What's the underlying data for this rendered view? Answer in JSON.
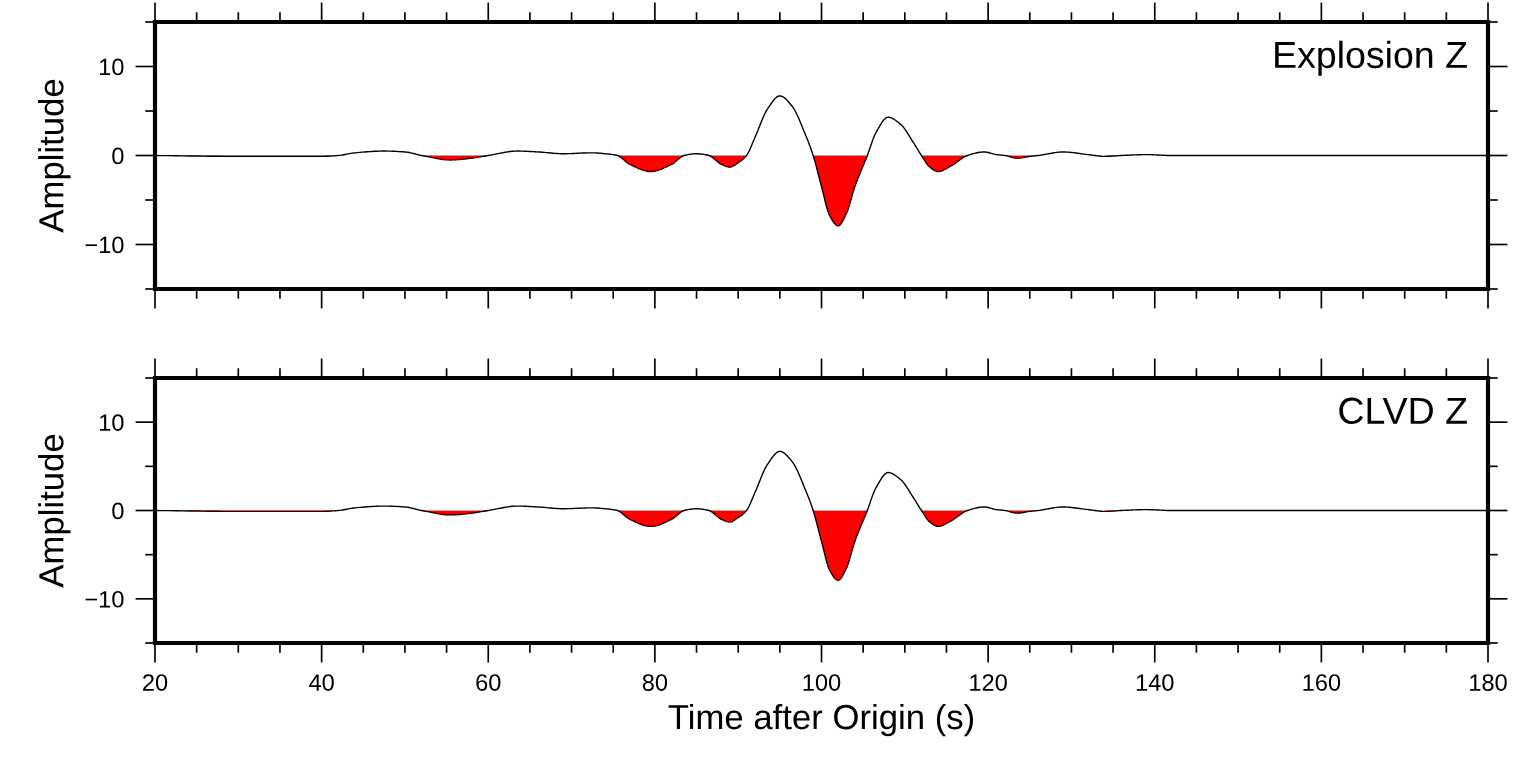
{
  "chart_data": [
    {
      "type": "line",
      "ylabel": "Amplitude",
      "annotations": [
        "Explosion Z"
      ],
      "tick_labels": "y",
      "grid": false,
      "legend": false,
      "x": [
        20,
        30,
        40,
        42,
        44,
        47.5,
        50,
        52,
        55.5,
        58,
        60,
        63.5,
        66,
        69,
        72.5,
        74,
        75.5,
        77,
        79.5,
        82,
        83.5,
        85,
        86.5,
        88,
        89,
        90,
        91,
        92,
        93.5,
        95,
        96.5,
        98,
        99,
        100,
        101,
        102,
        103,
        104,
        105.5,
        106.5,
        108,
        109.5,
        111,
        112,
        113,
        114,
        115.5,
        117.5,
        119.5,
        121,
        122,
        123.5,
        125,
        126,
        129,
        132,
        134,
        136,
        139,
        142,
        145,
        160,
        170,
        180
      ],
      "series": [
        {
          "type": "area",
          "color": "#ff0000",
          "values": [
            0,
            -0.1,
            -0.1,
            0,
            null,
            null,
            null,
            0,
            -0.5,
            -0.3,
            0,
            null,
            null,
            null,
            null,
            null,
            0,
            -1.0,
            -1.8,
            -1.0,
            0,
            null,
            0,
            -1.0,
            -1.3,
            -0.8,
            0,
            null,
            null,
            null,
            null,
            null,
            0,
            -3.5,
            -6.8,
            -7.9,
            -6.5,
            -3.5,
            0,
            null,
            null,
            null,
            null,
            0,
            -1.3,
            -1.8,
            -1.2,
            0,
            null,
            null,
            0,
            -0.3,
            -0.1,
            0,
            null,
            null,
            -0.1,
            0,
            null,
            null,
            null,
            null,
            null,
            null
          ]
        },
        {
          "color": "#000000",
          "values": [
            0,
            -0.1,
            -0.1,
            0,
            0.3,
            0.5,
            0.4,
            0,
            -0.5,
            -0.3,
            0,
            0.5,
            0.4,
            0.2,
            0.3,
            0.2,
            0,
            -1.0,
            -1.8,
            -1.0,
            0,
            0.2,
            0,
            -1.0,
            -1.3,
            -0.8,
            0,
            2.0,
            5.2,
            6.7,
            5.5,
            2.5,
            0,
            -3.5,
            -6.8,
            -7.9,
            -6.5,
            -3.5,
            0,
            2.5,
            4.3,
            3.5,
            1.5,
            0,
            -1.3,
            -1.8,
            -1.2,
            0,
            0.4,
            0.1,
            0,
            -0.3,
            -0.1,
            0,
            0.4,
            0.1,
            -0.1,
            0,
            0.1,
            0,
            0,
            0,
            0,
            0
          ]
        }
      ],
      "xlim": [
        20,
        180
      ],
      "ylim": [
        -15,
        15
      ],
      "xticks": [
        20,
        {
          "value": 25,
          "label": null
        },
        {
          "value": 30,
          "label": null
        },
        {
          "value": 35,
          "label": null
        },
        40,
        {
          "value": 45,
          "label": null
        },
        {
          "value": 50,
          "label": null
        },
        {
          "value": 55,
          "label": null
        },
        60,
        {
          "value": 65,
          "label": null
        },
        {
          "value": 70,
          "label": null
        },
        {
          "value": 75,
          "label": null
        },
        80,
        {
          "value": 85,
          "label": null
        },
        {
          "value": 90,
          "label": null
        },
        {
          "value": 95,
          "label": null
        },
        100,
        {
          "value": 105,
          "label": null
        },
        {
          "value": 110,
          "label": null
        },
        {
          "value": 115,
          "label": null
        },
        120,
        {
          "value": 125,
          "label": null
        },
        {
          "value": 130,
          "label": null
        },
        {
          "value": 135,
          "label": null
        },
        140,
        {
          "value": 145,
          "label": null
        },
        {
          "value": 150,
          "label": null
        },
        {
          "value": 155,
          "label": null
        },
        160,
        {
          "value": 165,
          "label": null
        },
        {
          "value": 170,
          "label": null
        },
        {
          "value": 175,
          "label": null
        },
        180
      ],
      "yticks": [
        {
          "value": -15,
          "label": null
        },
        {
          "value": -10,
          "label": "−10"
        },
        {
          "value": -5,
          "label": null
        },
        0,
        {
          "value": 5,
          "label": null
        },
        10,
        {
          "value": 15,
          "label": null
        }
      ]
    },
    {
      "type": "line",
      "ylabel": "Amplitude",
      "xlabel": "Time after Origin (s)",
      "annotations": [
        "CLVD Z"
      ],
      "grid": false,
      "legend": false,
      "x": [
        20,
        30,
        40,
        42,
        44,
        47.5,
        50,
        52,
        55.5,
        58,
        60,
        63.5,
        66,
        69,
        72.5,
        74,
        75.5,
        77,
        79.5,
        82,
        83.5,
        85,
        86.5,
        88,
        89,
        90,
        91,
        92,
        93.5,
        95,
        96.5,
        98,
        99,
        100,
        101,
        102,
        103,
        104,
        105.5,
        106.5,
        108,
        109.5,
        111,
        112,
        113,
        114,
        115.5,
        117.5,
        119.5,
        121,
        122,
        123.5,
        125,
        126,
        129,
        132,
        134,
        136,
        139,
        142,
        145,
        160,
        170,
        180
      ],
      "series": [
        {
          "type": "area",
          "color": "#ff0000",
          "values": [
            0,
            -0.1,
            -0.1,
            0,
            null,
            null,
            null,
            0,
            -0.5,
            -0.3,
            0,
            null,
            null,
            null,
            null,
            null,
            0,
            -1.0,
            -1.8,
            -1.0,
            0,
            null,
            0,
            -1.0,
            -1.3,
            -0.8,
            0,
            null,
            null,
            null,
            null,
            null,
            0,
            -3.5,
            -6.8,
            -7.9,
            -6.5,
            -3.5,
            0,
            null,
            null,
            null,
            null,
            0,
            -1.3,
            -1.8,
            -1.2,
            0,
            null,
            null,
            0,
            -0.3,
            -0.1,
            0,
            null,
            null,
            -0.1,
            0,
            null,
            null,
            null,
            null,
            null,
            null
          ]
        },
        {
          "color": "#000000",
          "values": [
            0,
            -0.1,
            -0.1,
            0,
            0.3,
            0.5,
            0.4,
            0,
            -0.5,
            -0.3,
            0,
            0.5,
            0.4,
            0.2,
            0.3,
            0.2,
            0,
            -1.0,
            -1.8,
            -1.0,
            0,
            0.2,
            0,
            -1.0,
            -1.3,
            -0.8,
            0,
            2.0,
            5.2,
            6.7,
            5.5,
            2.5,
            0,
            -3.5,
            -6.8,
            -7.9,
            -6.5,
            -3.5,
            0,
            2.5,
            4.3,
            3.5,
            1.5,
            0,
            -1.3,
            -1.8,
            -1.2,
            0,
            0.4,
            0.1,
            0,
            -0.3,
            -0.1,
            0,
            0.4,
            0.1,
            -0.1,
            0,
            0.1,
            0,
            0,
            0,
            0,
            0
          ]
        }
      ],
      "xlim": [
        20,
        180
      ],
      "ylim": [
        -15,
        15
      ],
      "xticks": [
        20,
        {
          "value": 25,
          "label": null
        },
        {
          "value": 30,
          "label": null
        },
        {
          "value": 35,
          "label": null
        },
        40,
        {
          "value": 45,
          "label": null
        },
        {
          "value": 50,
          "label": null
        },
        {
          "value": 55,
          "label": null
        },
        60,
        {
          "value": 65,
          "label": null
        },
        {
          "value": 70,
          "label": null
        },
        {
          "value": 75,
          "label": null
        },
        80,
        {
          "value": 85,
          "label": null
        },
        {
          "value": 90,
          "label": null
        },
        {
          "value": 95,
          "label": null
        },
        100,
        {
          "value": 105,
          "label": null
        },
        {
          "value": 110,
          "label": null
        },
        {
          "value": 115,
          "label": null
        },
        120,
        {
          "value": 125,
          "label": null
        },
        {
          "value": 130,
          "label": null
        },
        {
          "value": 135,
          "label": null
        },
        140,
        {
          "value": 145,
          "label": null
        },
        {
          "value": 150,
          "label": null
        },
        {
          "value": 155,
          "label": null
        },
        160,
        {
          "value": 165,
          "label": null
        },
        {
          "value": 170,
          "label": null
        },
        {
          "value": 175,
          "label": null
        },
        180
      ],
      "yticks": [
        {
          "value": -15,
          "label": null
        },
        {
          "value": -10,
          "label": "−10"
        },
        {
          "value": -5,
          "label": null
        },
        0,
        {
          "value": 5,
          "label": null
        },
        10,
        {
          "value": 15,
          "label": null
        }
      ]
    }
  ]
}
